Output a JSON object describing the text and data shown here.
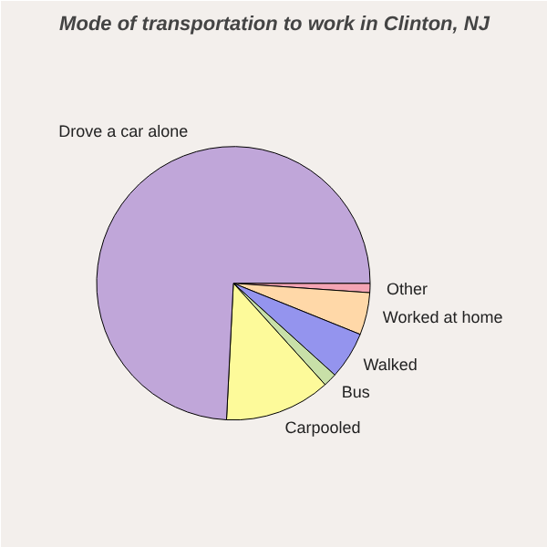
{
  "chart_data": {
    "type": "pie",
    "title": "Mode of transportation to work in Clinton, NJ",
    "categories": [
      "Other",
      "Worked at home",
      "Walked",
      "Bus",
      "Carpooled",
      "Drove a car alone"
    ],
    "values": [
      1.1,
      5,
      5.6,
      1.6,
      12.5,
      74.2
    ],
    "colors": [
      "#f4a4b4",
      "#ffd8a8",
      "#9494ee",
      "#c8e0a8",
      "#fdfa9a",
      "#c0a6d9"
    ]
  }
}
